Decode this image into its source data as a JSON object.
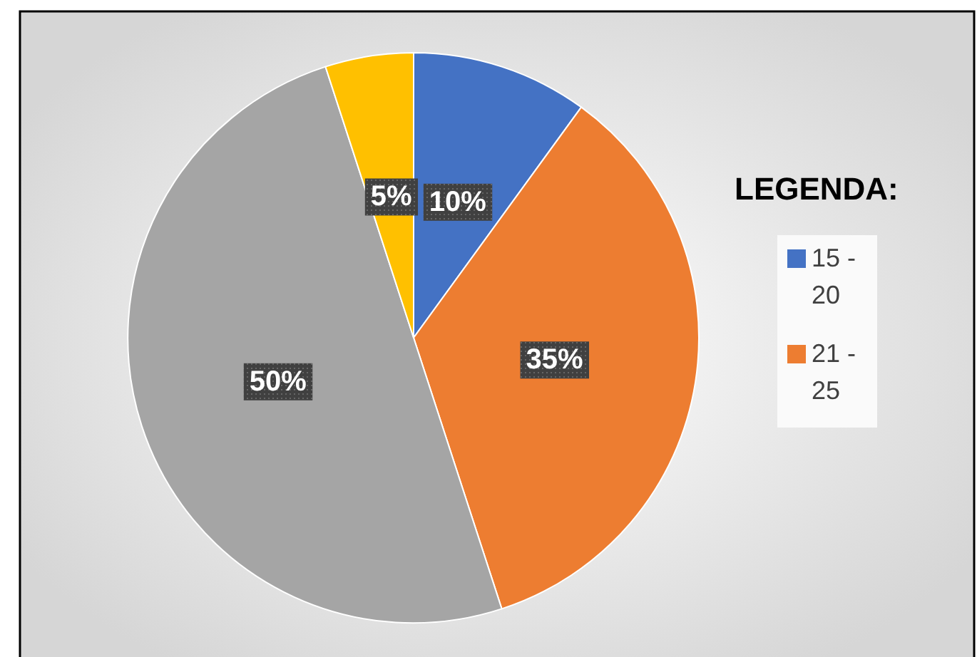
{
  "chart_data": {
    "type": "pie",
    "legend_title": "LEGENDA:",
    "legend": "right",
    "value_labels": [
      "10%",
      "35%",
      "50%",
      "5%"
    ],
    "categories": [
      "15 - 20",
      "21 - 25",
      null,
      null
    ],
    "values": [
      10,
      35,
      50,
      5
    ],
    "colors": [
      "#4472c4",
      "#ed7d31",
      "#a5a5a5",
      "#ffc000"
    ]
  }
}
